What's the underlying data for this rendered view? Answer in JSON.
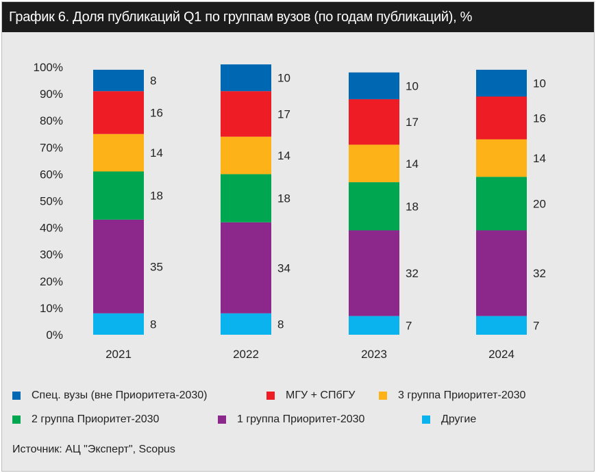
{
  "title": "График 6. Доля публикаций Q1 по группам вузов (по годам публикаций), %",
  "source": "Источник: АЦ \"Эксперт\", Scopus",
  "chart_data": {
    "type": "bar",
    "stacked": true,
    "categories": [
      "2021",
      "2022",
      "2023",
      "2024"
    ],
    "y_ticks": [
      "0%",
      "10%",
      "20%",
      "30%",
      "40%",
      "50%",
      "60%",
      "70%",
      "80%",
      "90%",
      "100%"
    ],
    "ylim": [
      0,
      100
    ],
    "series": [
      {
        "name": "Другие",
        "color": "#0bb3ee",
        "values": [
          8,
          8,
          7,
          7
        ],
        "labels": [
          "8",
          "8",
          "7",
          "7"
        ]
      },
      {
        "name": "1 группа Приоритет-2030",
        "color": "#8c278c",
        "values": [
          35,
          34,
          32,
          32
        ],
        "labels": [
          "35",
          "34",
          "32",
          "32"
        ]
      },
      {
        "name": "2 группа Приоритет-2030",
        "color": "#00a650",
        "values": [
          18,
          18,
          18,
          20
        ],
        "labels": [
          "18",
          "18",
          "18",
          "20"
        ]
      },
      {
        "name": "3 группа Приоритет-2030",
        "color": "#fdb218",
        "values": [
          14,
          14,
          14,
          14
        ],
        "labels": [
          "14",
          "14",
          "14",
          "14"
        ]
      },
      {
        "name": "МГУ + СПбГУ",
        "color": "#ee1c25",
        "values": [
          16,
          17,
          17,
          16
        ],
        "labels": [
          "16",
          "17",
          "17",
          "16"
        ]
      },
      {
        "name": "Спец. вузы (вне Приоритета-2030)",
        "color": "#0067b3",
        "values": [
          8,
          10,
          10,
          10
        ],
        "labels": [
          "8",
          "10",
          "10",
          "10"
        ]
      }
    ],
    "legend_order": [
      5,
      4,
      3,
      2,
      1,
      0
    ],
    "legend_placement": "bottom",
    "grid": false
  }
}
